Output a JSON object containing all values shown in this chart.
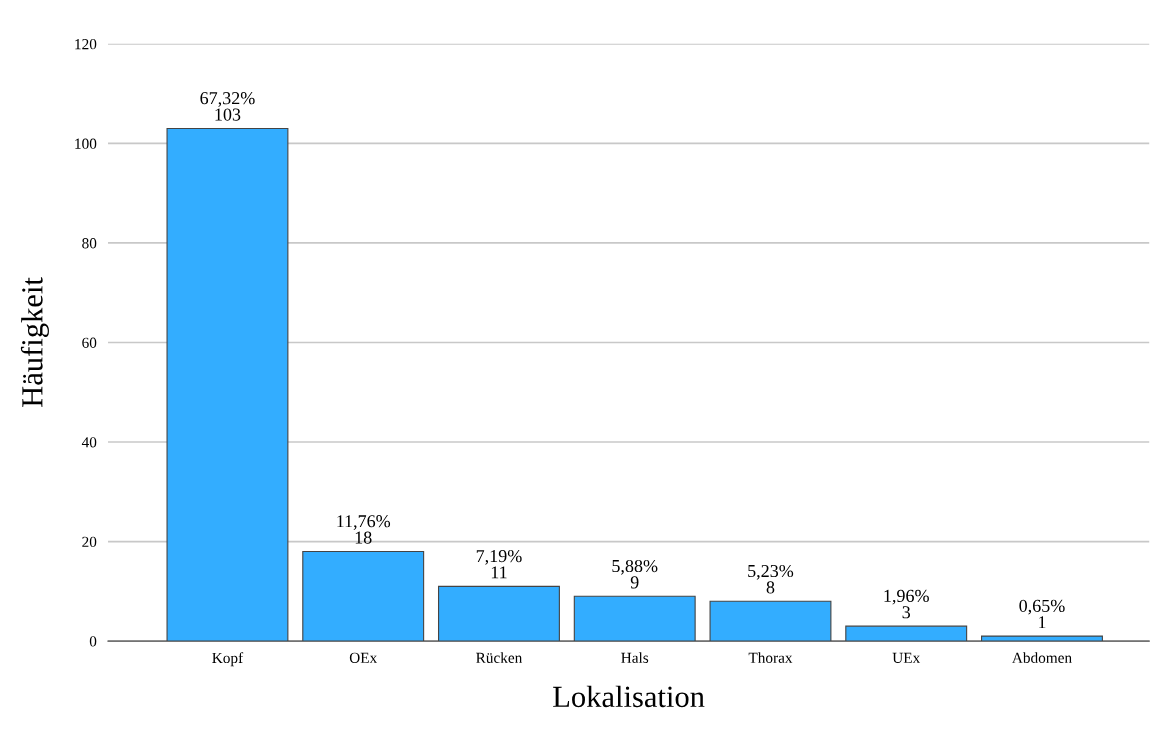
{
  "chart_data": {
    "type": "bar",
    "xlabel": "Lokalisation",
    "ylabel": "Häufigkeit",
    "categories": [
      "Kopf",
      "OEx",
      "Rücken",
      "Hals",
      "Thorax",
      "UEx",
      "Abdomen"
    ],
    "values": [
      103,
      18,
      11,
      9,
      8,
      3,
      1
    ],
    "value_labels": [
      "67,32%\n103",
      "11,76%\n18",
      "7,19%\n11",
      "5,88%\n9",
      "5,23%\n8",
      "1,96%\n3",
      "0,65%\n1"
    ],
    "color": "#33adff",
    "ylim": [
      0,
      120
    ],
    "yticks": [
      0,
      20,
      40,
      60,
      80,
      100,
      120
    ],
    "grid": "y"
  }
}
